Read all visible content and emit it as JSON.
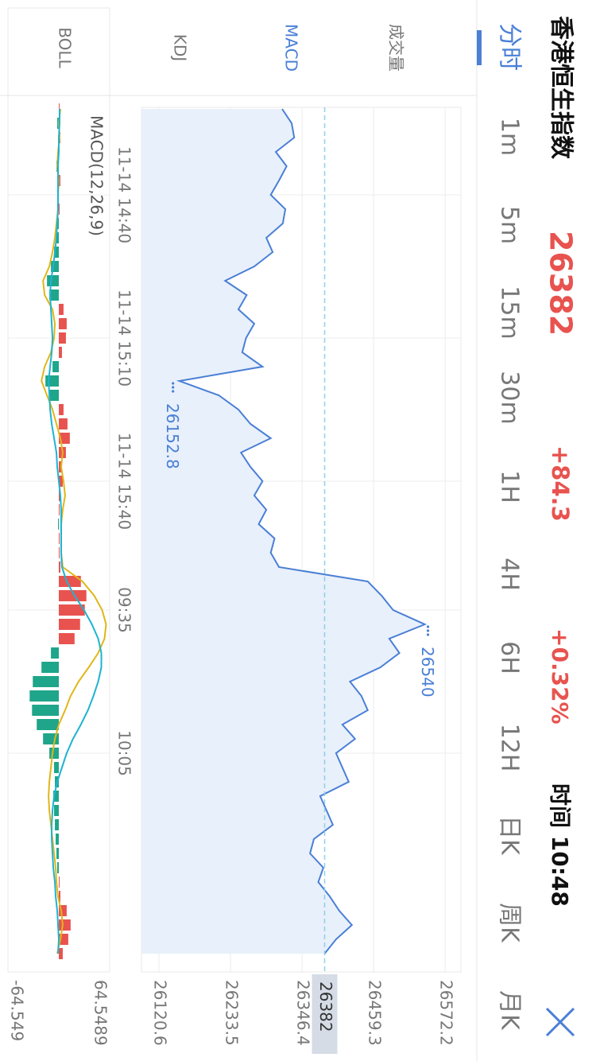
{
  "header": {
    "title": "香港恒生指数",
    "price": "26382",
    "change": "+84.3",
    "change_pct": "+0.32%",
    "time": "时间 10:48"
  },
  "tabs": [
    "分时",
    "1m",
    "5m",
    "15m",
    "30m",
    "1H",
    "4H",
    "6H",
    "12H",
    "日K",
    "周K",
    "月K"
  ],
  "indicators": [
    "成交量",
    "MACD",
    "KDJ",
    "BOLL"
  ],
  "chart_data": [
    {
      "type": "area",
      "color": "#4a7fd6",
      "fill": "#e8f0fb",
      "grid": true,
      "categories": [
        null,
        null,
        null,
        null,
        null,
        null,
        "11-14 14:40",
        null,
        null,
        null,
        null,
        null,
        null,
        null,
        null,
        null,
        "11-14 15:10",
        null,
        null,
        null,
        null,
        null,
        null,
        null,
        null,
        null,
        "11-14 15:40",
        null,
        null,
        null,
        null,
        null,
        null,
        null,
        null,
        "09:35",
        null,
        null,
        null,
        null,
        null,
        null,
        null,
        null,
        null,
        "10:05",
        null,
        null,
        null,
        null,
        null,
        null,
        null,
        null,
        null,
        null,
        null,
        null,
        null,
        null
      ],
      "values": [
        26315,
        26330,
        26334,
        26305,
        26322,
        26310,
        26297,
        26320,
        26316,
        26290,
        26300,
        26271,
        26225,
        26259,
        26246,
        26271,
        26258,
        26252,
        26284,
        26152.8,
        26215,
        26246,
        26265,
        26297,
        26250,
        26265,
        26284,
        26271,
        26290,
        26278,
        26303,
        26297,
        26310,
        26450,
        26472,
        26490,
        26540,
        26484,
        26500,
        26470,
        26422,
        26440,
        26450,
        26410,
        26430,
        26400,
        26410,
        26420,
        26375,
        26385,
        26395,
        26365,
        26359,
        26380,
        26372,
        26390,
        26405,
        26425,
        26400,
        26382
      ],
      "ylim": [
        26093,
        26597
      ],
      "yticks": [
        26120.6,
        26233.5,
        26346.4,
        26459.3,
        26572.2
      ]
    },
    {
      "type": "macd",
      "title": "MACD(12,26,9)",
      "ylim": [
        -64.549,
        64.5489
      ],
      "yticks": [
        -64.549,
        64.5489
      ],
      "series": [
        {
          "kind": "bar",
          "color_up": "#e8534f",
          "color_down": "#1fa58a",
          "values": [
            1,
            -2,
            2,
            -1,
            -3,
            2,
            -2,
            1,
            -3,
            -4,
            -6,
            -10,
            -15,
            -12,
            6,
            10,
            9,
            4,
            -8,
            -17,
            -12,
            6,
            11,
            14,
            9,
            4,
            5,
            2,
            1,
            -1,
            1,
            1,
            2,
            28,
            35,
            33,
            27,
            20,
            -10,
            -22,
            -33,
            -37,
            -34,
            -28,
            -20,
            -12,
            -6,
            -5,
            -7,
            -6,
            -5,
            -4,
            -3,
            -2,
            1,
            2,
            10,
            15,
            12,
            5
          ]
        },
        {
          "kind": "line",
          "color": "#e0b619",
          "values": [
            2,
            0,
            1,
            -1,
            -2,
            0,
            -1,
            -1,
            -3,
            -5,
            -8,
            -12,
            -20,
            -18,
            -8,
            -5,
            -6,
            -10,
            -18,
            -22,
            -15,
            -8,
            -3,
            2,
            5,
            3,
            6,
            8,
            5,
            3,
            3,
            3,
            5,
            30,
            45,
            55,
            60,
            58,
            50,
            38,
            25,
            15,
            8,
            0,
            -5,
            -8,
            -10,
            -12,
            -13,
            -12,
            -10,
            -8,
            -6,
            -4,
            -3,
            -1,
            3,
            5,
            2,
            -2
          ]
        },
        {
          "kind": "line",
          "color": "#1fb3d1",
          "values": [
            1,
            1,
            0,
            0,
            -1,
            -1,
            -1,
            -1,
            -2,
            -3,
            -5,
            -7,
            -10,
            -11,
            -10,
            -9,
            -8,
            -9,
            -11,
            -13,
            -12,
            -11,
            -9,
            -6,
            -3,
            -2,
            0,
            2,
            3,
            3,
            3,
            3,
            4,
            10,
            20,
            32,
            42,
            50,
            54,
            54,
            50,
            44,
            37,
            28,
            18,
            10,
            4,
            -2,
            -6,
            -8,
            -9,
            -9,
            -8,
            -7,
            -5,
            -4,
            -2,
            -1,
            0,
            -1
          ]
        }
      ]
    }
  ]
}
